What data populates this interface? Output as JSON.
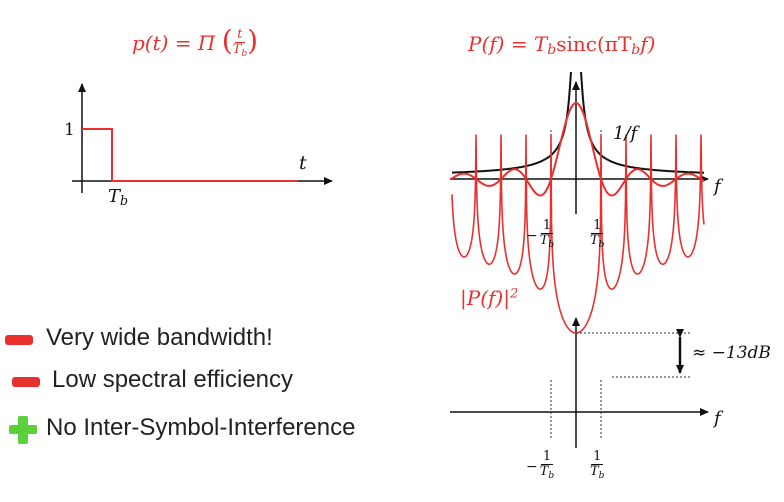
{
  "top_left": {
    "formula_lhs": "p(t) = Π",
    "frac_num": "t",
    "frac_den": "T",
    "frac_den_sub": "b",
    "label_one": "1",
    "label_t": "t",
    "label_tb": "T",
    "label_tb_sub": "b"
  },
  "top_right": {
    "formula": "P(f) = T",
    "formula_sub": "b",
    "formula_rest": "sinc(πT",
    "formula_sub2": "b",
    "formula_end": "f)",
    "label_invf": "1/f",
    "label_f": "f",
    "tick_neg_sign": "−",
    "tick_num": "1",
    "tick_den": "T",
    "tick_den_sub": "b"
  },
  "bottom_right": {
    "formula": "|P(f)|",
    "formula_sup": "2",
    "label_db": "≈ −13dB",
    "label_f": "f",
    "tick_neg_sign": "−",
    "tick_num": "1",
    "tick_den": "T",
    "tick_den_sub": "b"
  },
  "bullets": [
    {
      "icon": "minus-icon",
      "color": "#e8312f",
      "text": "Very wide bandwidth!"
    },
    {
      "icon": "minus-icon",
      "color": "#e8312f",
      "text": "Low spectral efficiency"
    },
    {
      "icon": "plus-icon",
      "color": "#5ad13a",
      "text": "No Inter-Symbol-Interference"
    }
  ]
}
